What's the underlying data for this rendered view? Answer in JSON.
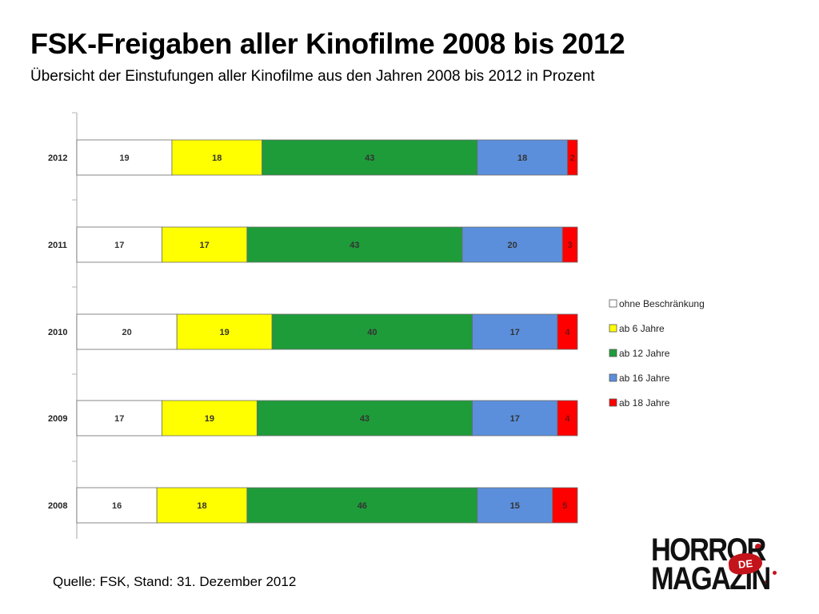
{
  "header": {
    "title": "FSK-Freigaben aller Kinofilme 2008 bis 2012",
    "subtitle": "Übersicht der Einstufungen aller Kinofilme aus den Jahren 2008 bis 2012 in Prozent"
  },
  "chart_data": {
    "type": "bar",
    "orientation": "horizontal",
    "stacked": true,
    "categories": [
      "2012",
      "2011",
      "2010",
      "2009",
      "2008"
    ],
    "series": [
      {
        "name": "ohne Beschränkung",
        "color": "#ffffff",
        "values": [
          19,
          17,
          20,
          17,
          16
        ]
      },
      {
        "name": "ab 6 Jahre",
        "color": "#ffff00",
        "values": [
          18,
          17,
          19,
          19,
          18
        ]
      },
      {
        "name": "ab 12 Jahre",
        "color": "#1e9c3a",
        "values": [
          43,
          43,
          40,
          43,
          46
        ]
      },
      {
        "name": "ab 16 Jahre",
        "color": "#5b8fdc",
        "values": [
          18,
          20,
          17,
          17,
          15
        ]
      },
      {
        "name": "ab 18 Jahre",
        "color": "#ff0000",
        "values": [
          2,
          3,
          4,
          4,
          5
        ]
      }
    ],
    "xlim": [
      0,
      100
    ],
    "legend_position": "right",
    "grid": false
  },
  "footer": {
    "source": "Quelle: FSK, Stand: 31. Dezember 2012"
  },
  "logo": {
    "line1": "HORROR",
    "line2": "MAGAZIN",
    "badge": "DE",
    "color": "#c4141b"
  }
}
